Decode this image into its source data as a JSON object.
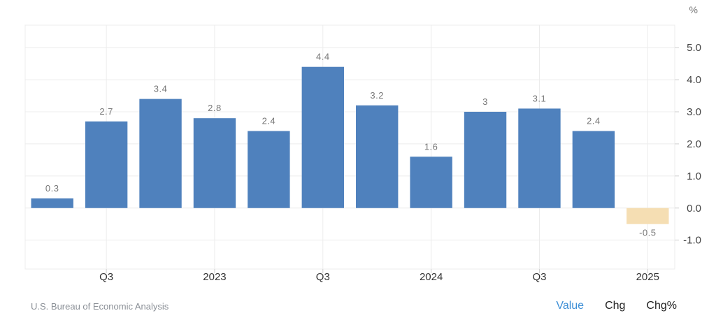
{
  "chart_data": {
    "type": "bar",
    "unit": "%",
    "x_tick_labels": [
      "Q3",
      "2023",
      "Q3",
      "2024",
      "Q3",
      "2025"
    ],
    "values": [
      0.3,
      2.7,
      3.4,
      2.8,
      2.4,
      4.4,
      3.2,
      1.6,
      3.0,
      3.1,
      2.4,
      -0.5
    ],
    "data_labels": [
      "0.3",
      "2.7",
      "3.4",
      "2.8",
      "2.4",
      "4.4",
      "3.2",
      "1.6",
      "3",
      "3.1",
      "2.4",
      "-0.5"
    ],
    "y_ticks": [
      "5.0",
      "4.0",
      "3.0",
      "2.0",
      "1.0",
      "0.0",
      "-1.0"
    ],
    "ylim": [
      -1.9,
      5.7
    ],
    "grid": true,
    "colors": {
      "positive": "#4f81bd",
      "negative": "#f5deb3",
      "grid": "#ececec",
      "label": "#777777"
    }
  },
  "footer": {
    "source": "U.S. Bureau of Economic Analysis",
    "modes": [
      "Value",
      "Chg",
      "Chg%"
    ],
    "active_mode": "Value"
  }
}
